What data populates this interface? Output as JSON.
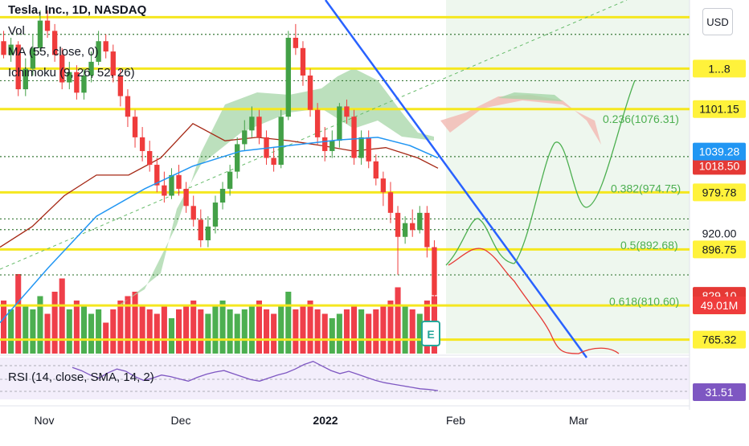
{
  "header": {
    "symbol_title": "Tesla, Inc., 1D, NASDAQ",
    "indicators": [
      "Vol",
      "MA (55, close, 0)",
      "Ichimoku (9, 26, 52, 26)"
    ],
    "rsi_label": "RSI (14, close, SMA, 14, 2)",
    "currency_button": "USD"
  },
  "colors": {
    "up": "#26a69a",
    "bull_candle": "#43a047",
    "bear_candle": "#ef3c3c",
    "volume_up": "#4caf50",
    "volume_down": "#ef3f4a",
    "price_level": "#f5e71f",
    "downtrend": "#2962ff",
    "ma55": "#2196f3",
    "kijun": "#a52714",
    "cloud_bull": "#a5d6a7",
    "cloud_bear": "#f2b8b1",
    "fib_text": "#4caf50",
    "projection_up": "#4caf50",
    "projection_down": "#e53935",
    "rsi_line": "#7e57c2"
  },
  "chart_data": {
    "type": "candlestick",
    "ylim": [
      745,
      1260
    ],
    "x_tick_labels": [
      "Nov",
      "Dec",
      "2022",
      "Feb",
      "Mar"
    ],
    "price_scale_labels": [
      {
        "value": 1018.5,
        "text": "1018.50",
        "style": "red"
      },
      {
        "value": 1039.28,
        "text": "1039.28",
        "style": "blue"
      },
      {
        "value": 1101.15,
        "text": "1101.15",
        "style": "yellow"
      },
      {
        "value": 979.78,
        "text": "979.78",
        "style": "yellow"
      },
      {
        "value": 920.0,
        "text": "920.00",
        "style": "plain"
      },
      {
        "value": 896.75,
        "text": "896.75",
        "style": "yellow"
      },
      {
        "value": 829.1,
        "text": "829.10",
        "style": "red"
      },
      {
        "value": 815.09,
        "text": "815.09",
        "style": "yellow"
      },
      {
        "value": 765.32,
        "text": "765.32",
        "style": "yellow"
      },
      {
        "value": 1160,
        "text": "1...8",
        "style": "yellow"
      }
    ],
    "volume_tag": "49.01M",
    "rsi_value": "31.51",
    "fib_levels": [
      {
        "label": "0.236(1076.31)",
        "value": 1076.31
      },
      {
        "label": "0.382(974.75)",
        "value": 974.75
      },
      {
        "label": "0.5(892.68)",
        "value": 892.68
      },
      {
        "label": "0.618(810.60)",
        "value": 810.6
      }
    ],
    "support_resistance_levels": [
      1235,
      1160,
      1101.15,
      979.78,
      896.75,
      815.09,
      765.32
    ],
    "dotted_levels": [
      1210,
      1142.45,
      1031.94,
      941.11,
      925.5,
      859.62
    ],
    "candles": [
      [
        1200,
        1180,
        1215,
        1175
      ],
      [
        1180,
        1195,
        1205,
        1170
      ],
      [
        1195,
        1130,
        1200,
        1120
      ],
      [
        1130,
        1160,
        1175,
        1120
      ],
      [
        1160,
        1190,
        1210,
        1150
      ],
      [
        1190,
        1230,
        1245,
        1185
      ],
      [
        1230,
        1215,
        1245,
        1205
      ],
      [
        1215,
        1180,
        1225,
        1170
      ],
      [
        1180,
        1140,
        1190,
        1130
      ],
      [
        1140,
        1155,
        1170,
        1130
      ],
      [
        1155,
        1125,
        1165,
        1115
      ],
      [
        1125,
        1150,
        1160,
        1115
      ],
      [
        1150,
        1170,
        1185,
        1140
      ],
      [
        1170,
        1200,
        1215,
        1165
      ],
      [
        1200,
        1185,
        1210,
        1175
      ],
      [
        1185,
        1150,
        1195,
        1140
      ],
      [
        1150,
        1120,
        1160,
        1105
      ],
      [
        1120,
        1090,
        1130,
        1075
      ],
      [
        1090,
        1060,
        1100,
        1045
      ],
      [
        1060,
        1040,
        1075,
        1025
      ],
      [
        1040,
        1020,
        1055,
        1010
      ],
      [
        1020,
        990,
        1030,
        980
      ],
      [
        990,
        975,
        1010,
        965
      ],
      [
        975,
        1005,
        1015,
        970
      ],
      [
        1005,
        985,
        1020,
        975
      ],
      [
        985,
        960,
        995,
        950
      ],
      [
        960,
        940,
        975,
        930
      ],
      [
        940,
        910,
        955,
        900
      ],
      [
        910,
        930,
        945,
        900
      ],
      [
        930,
        965,
        975,
        920
      ],
      [
        965,
        985,
        995,
        955
      ],
      [
        985,
        1010,
        1020,
        975
      ],
      [
        1010,
        1050,
        1060,
        1000
      ],
      [
        1050,
        1070,
        1085,
        1040
      ],
      [
        1070,
        1090,
        1105,
        1060
      ],
      [
        1090,
        1060,
        1100,
        1050
      ],
      [
        1060,
        1030,
        1070,
        1020
      ],
      [
        1030,
        1020,
        1045,
        1010
      ],
      [
        1020,
        1090,
        1100,
        1015
      ],
      [
        1090,
        1205,
        1215,
        1085
      ],
      [
        1205,
        1190,
        1225,
        1180
      ],
      [
        1190,
        1150,
        1200,
        1135
      ],
      [
        1150,
        1100,
        1160,
        1090
      ],
      [
        1100,
        1060,
        1110,
        1050
      ],
      [
        1060,
        1040,
        1075,
        1025
      ],
      [
        1040,
        1055,
        1070,
        1030
      ],
      [
        1055,
        1105,
        1110,
        1045
      ],
      [
        1105,
        1090,
        1115,
        1080
      ],
      [
        1090,
        1030,
        1100,
        1020
      ],
      [
        1030,
        1060,
        1070,
        1020
      ],
      [
        1060,
        1025,
        1070,
        1015
      ],
      [
        1025,
        1000,
        1035,
        990
      ],
      [
        1000,
        980,
        1010,
        960
      ],
      [
        980,
        950,
        995,
        935
      ],
      [
        950,
        915,
        960,
        860
      ],
      [
        915,
        935,
        945,
        905
      ],
      [
        935,
        925,
        955,
        915
      ],
      [
        925,
        950,
        960,
        920
      ],
      [
        950,
        900,
        960,
        885
      ],
      [
        900,
        830,
        910,
        825
      ]
    ],
    "volume": [
      0.6,
      0.5,
      0.9,
      0.55,
      0.5,
      0.65,
      0.45,
      0.7,
      0.85,
      0.5,
      0.6,
      0.55,
      0.45,
      0.5,
      0.35,
      0.5,
      0.6,
      0.65,
      0.7,
      0.55,
      0.5,
      0.45,
      0.55,
      0.4,
      0.5,
      0.55,
      0.6,
      0.5,
      0.45,
      0.55,
      0.6,
      0.5,
      0.45,
      0.5,
      0.55,
      0.6,
      0.5,
      0.45,
      0.55,
      0.7,
      0.5,
      0.55,
      0.6,
      0.5,
      0.45,
      0.4,
      0.45,
      0.5,
      0.55,
      0.5,
      0.45,
      0.5,
      0.55,
      0.6,
      0.75,
      0.55,
      0.5,
      0.45,
      0.6,
      0.65
    ],
    "ma55": [
      [
        0,
        790
      ],
      [
        60,
        870
      ],
      [
        120,
        945
      ],
      [
        180,
        985
      ],
      [
        240,
        1018
      ],
      [
        300,
        1040
      ],
      [
        360,
        1048
      ],
      [
        420,
        1056
      ],
      [
        470,
        1060
      ],
      [
        510,
        1048
      ],
      [
        545,
        1030
      ]
    ],
    "kijun": [
      [
        0,
        900
      ],
      [
        40,
        930
      ],
      [
        80,
        975
      ],
      [
        120,
        1005
      ],
      [
        160,
        1005
      ],
      [
        200,
        1030
      ],
      [
        240,
        1080
      ],
      [
        280,
        1055
      ],
      [
        320,
        1060
      ],
      [
        360,
        1055
      ],
      [
        400,
        1048
      ],
      [
        440,
        1040
      ],
      [
        480,
        1045
      ],
      [
        520,
        1030
      ],
      [
        545,
        1015
      ]
    ],
    "rsi_series": [
      62,
      58,
      52,
      48,
      55,
      60,
      57,
      50,
      45,
      48,
      52,
      50,
      47,
      44,
      49,
      53,
      56,
      58,
      54,
      50,
      46,
      44,
      48,
      52,
      55,
      60,
      66,
      70,
      64,
      58,
      54,
      57,
      53,
      49,
      45,
      42,
      40,
      38,
      36,
      34,
      33,
      31.5
    ]
  }
}
